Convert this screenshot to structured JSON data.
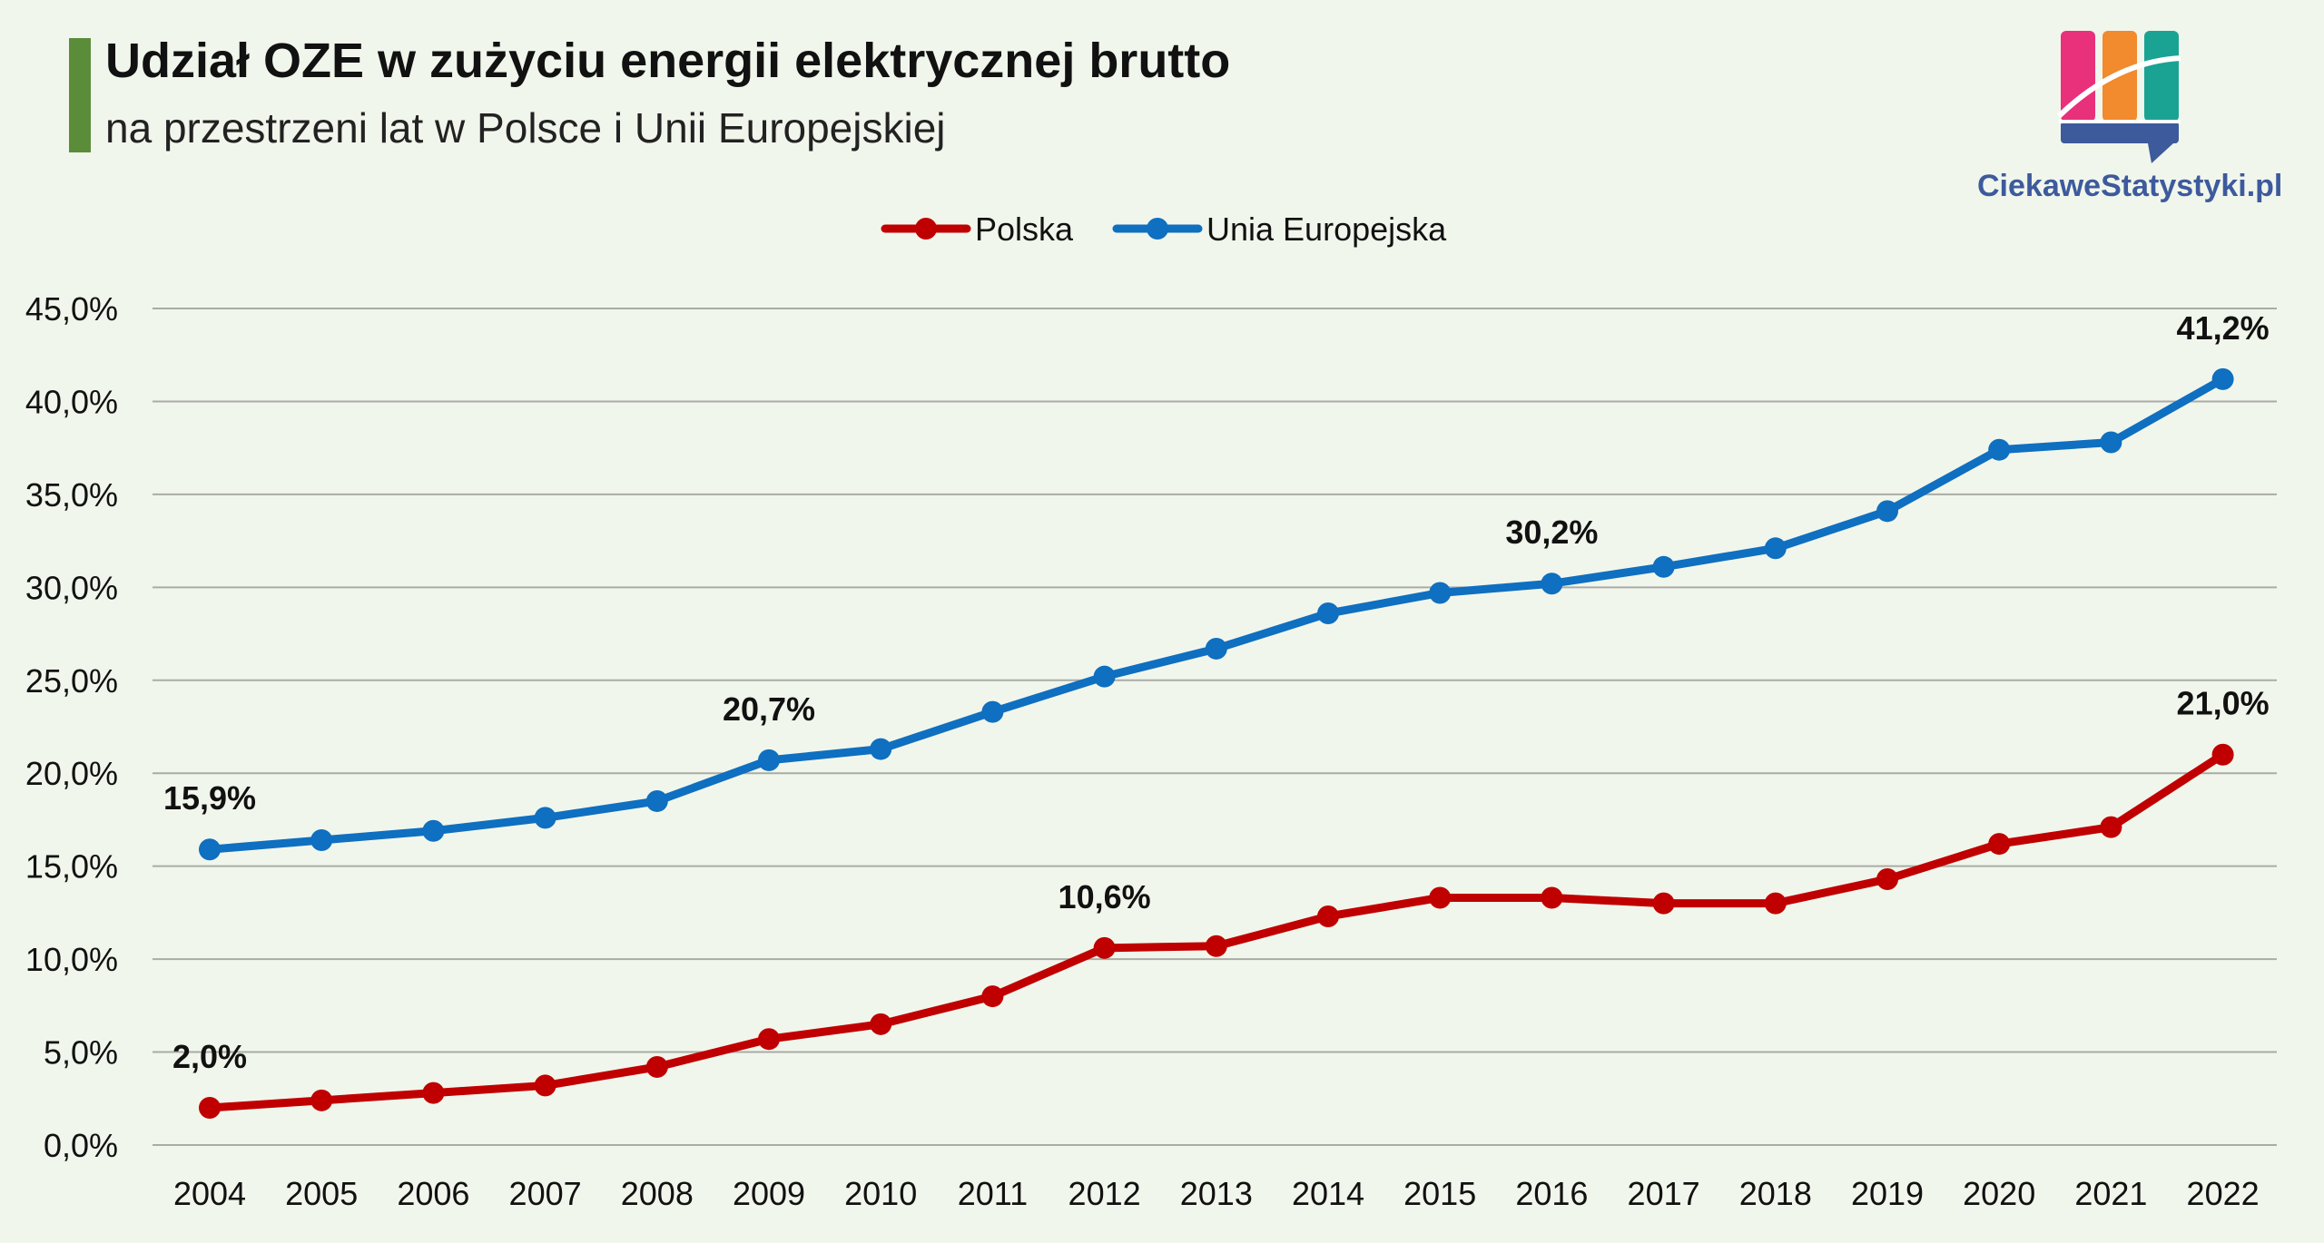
{
  "header": {
    "title": "Udział OZE w zużyciu energii elektrycznej brutto",
    "subtitle": "na przestrzeni lat w Polsce i Unii Europejskiej"
  },
  "logo": {
    "text": "CiekaweStatystyki.pl",
    "colors": [
      "#e8317a",
      "#f28a2e",
      "#1aa392",
      "#3d5a9c"
    ]
  },
  "chart_data": {
    "type": "line",
    "title": "Udział OZE w zużyciu energii elektrycznej brutto",
    "subtitle": "na przestrzeni lat w Polsce i Unii Europejskiej",
    "xlabel": "",
    "ylabel": "",
    "ylim": [
      0,
      45
    ],
    "yticks": [
      "0,0%",
      "5,0%",
      "10,0%",
      "15,0%",
      "20,0%",
      "25,0%",
      "30,0%",
      "35,0%",
      "40,0%",
      "45,0%"
    ],
    "grid": "horizontal",
    "legend_position": "top-center",
    "categories": [
      "2004",
      "2005",
      "2006",
      "2007",
      "2008",
      "2009",
      "2010",
      "2011",
      "2012",
      "2013",
      "2014",
      "2015",
      "2016",
      "2017",
      "2018",
      "2019",
      "2020",
      "2021",
      "2022"
    ],
    "series": [
      {
        "name": "Polska",
        "color": "#c00000",
        "values": [
          2.0,
          2.4,
          2.8,
          3.2,
          4.2,
          5.7,
          6.5,
          8.0,
          10.6,
          10.7,
          12.3,
          13.3,
          13.3,
          13.0,
          13.0,
          14.3,
          16.2,
          17.1,
          21.0
        ],
        "labels": [
          {
            "index": 0,
            "text": "2,0%"
          },
          {
            "index": 8,
            "text": "10,6%"
          },
          {
            "index": 18,
            "text": "21,0%"
          }
        ]
      },
      {
        "name": "Unia Europejska",
        "color": "#0f6fc0",
        "values": [
          15.9,
          16.4,
          16.9,
          17.6,
          18.5,
          20.7,
          21.3,
          23.3,
          25.2,
          26.7,
          28.6,
          29.7,
          30.2,
          31.1,
          32.1,
          34.1,
          37.4,
          37.8,
          41.2
        ],
        "labels": [
          {
            "index": 0,
            "text": "15,9%"
          },
          {
            "index": 5,
            "text": "20,7%"
          },
          {
            "index": 12,
            "text": "30,2%"
          },
          {
            "index": 18,
            "text": "41,2%"
          }
        ]
      }
    ]
  }
}
